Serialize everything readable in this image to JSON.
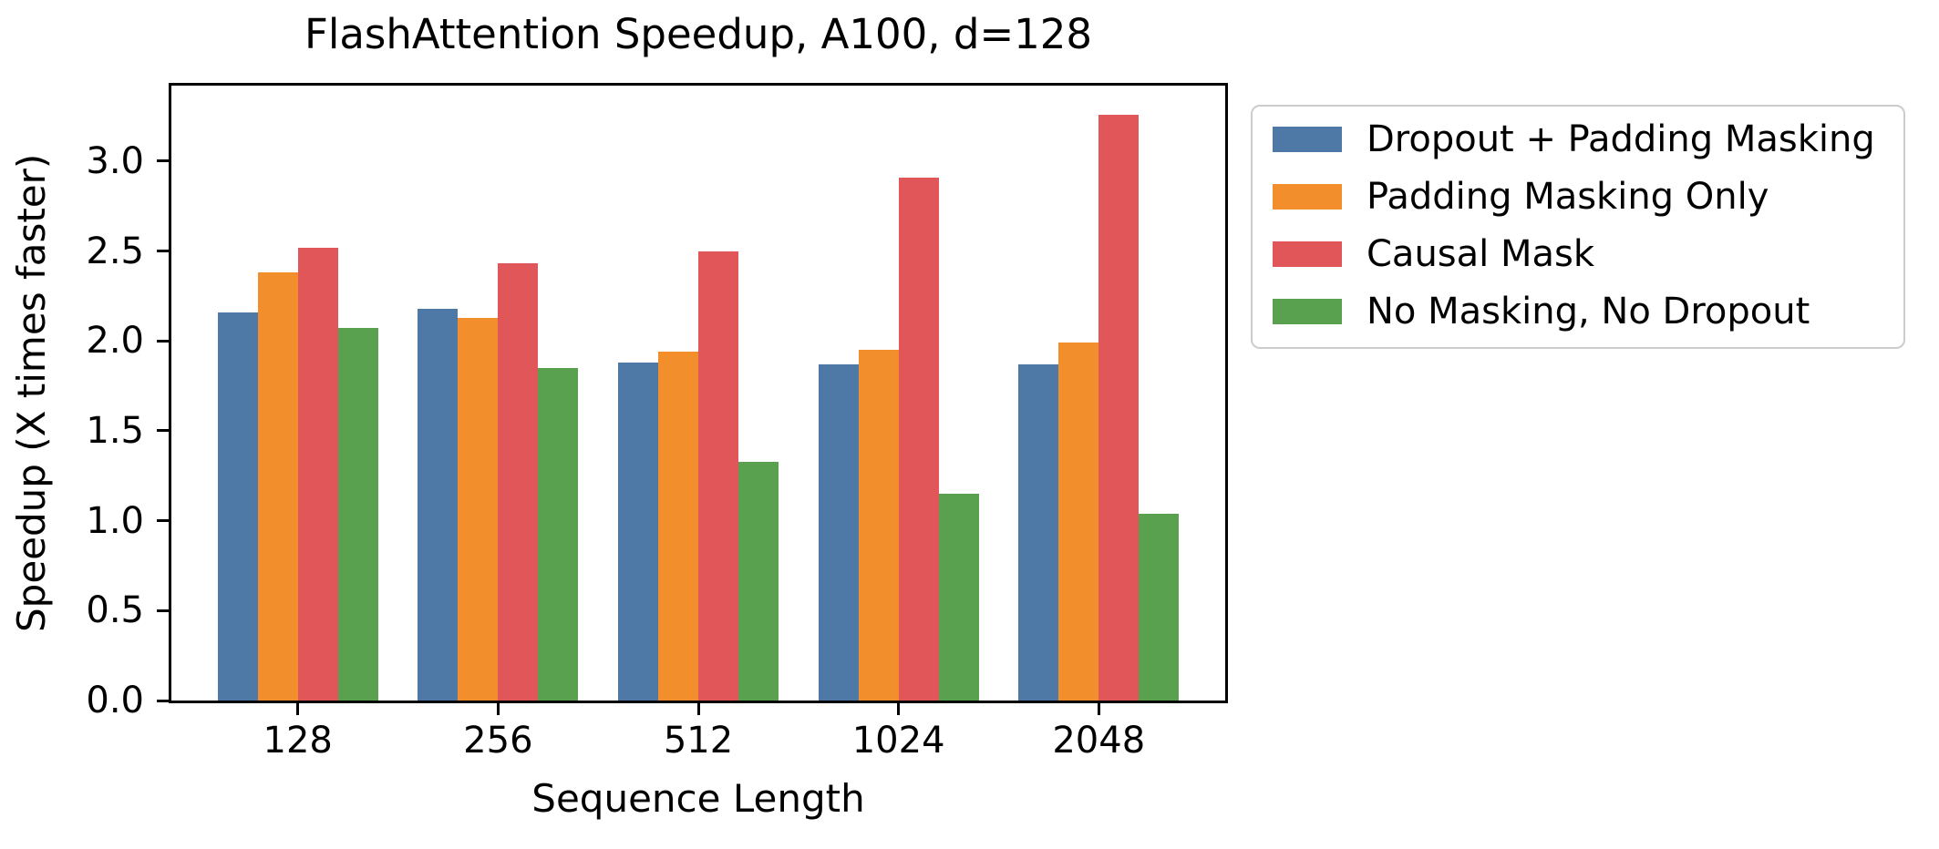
{
  "chart_data": {
    "type": "bar",
    "title": "FlashAttention Speedup, A100, d=128",
    "xlabel": "Sequence Length",
    "ylabel": "Speedup (X times faster)",
    "categories": [
      "128",
      "256",
      "512",
      "1024",
      "2048"
    ],
    "series": [
      {
        "name": "Dropout + Padding Masking",
        "color": "#4E79A7",
        "values": [
          2.16,
          2.18,
          1.88,
          1.87,
          1.87
        ]
      },
      {
        "name": "Padding Masking Only",
        "color": "#F28E2B",
        "values": [
          2.38,
          2.13,
          1.94,
          1.95,
          1.99
        ]
      },
      {
        "name": "Causal Mask",
        "color": "#E15759",
        "values": [
          2.52,
          2.43,
          2.5,
          2.91,
          3.26
        ]
      },
      {
        "name": "No Masking, No Dropout",
        "color": "#59A14F",
        "values": [
          2.07,
          1.85,
          1.33,
          1.15,
          1.04
        ]
      }
    ],
    "ylim": [
      0,
      3.42
    ],
    "yticks": [
      "0.0",
      "0.5",
      "1.0",
      "1.5",
      "2.0",
      "2.5",
      "3.0"
    ],
    "grid": false,
    "legend_position": "outside-upper-right",
    "colors": {
      "spine": "#000000",
      "text": "#000000",
      "legend_border": "#cccccc",
      "background": "#ffffff"
    }
  }
}
